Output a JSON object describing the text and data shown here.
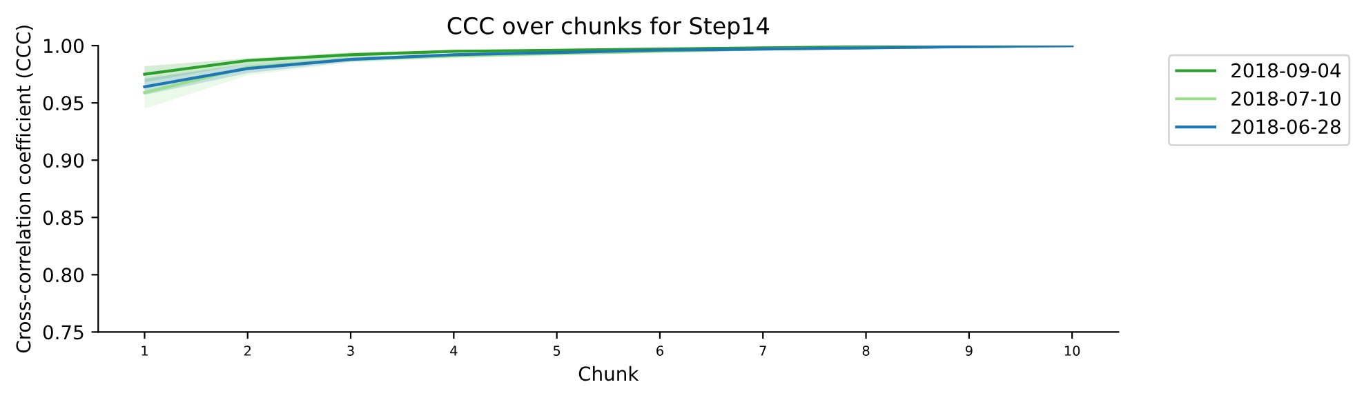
{
  "chart_data": {
    "type": "line",
    "title": "CCC over chunks for Step14",
    "xlabel": "Chunk",
    "ylabel": "Cross-correlation coefficient (CCC)",
    "x": [
      1,
      2,
      3,
      4,
      5,
      6,
      7,
      8,
      9,
      10
    ],
    "xlim": [
      0.55,
      10.45
    ],
    "xticks": [
      1,
      2,
      3,
      4,
      5,
      6,
      7,
      8,
      9,
      10
    ],
    "ylim": [
      0.75,
      1.0
    ],
    "yticks": [
      {
        "value": 0.75,
        "label": "0.75"
      },
      {
        "value": 0.8,
        "label": "0.80"
      },
      {
        "value": 0.85,
        "label": "0.85"
      },
      {
        "value": 0.9,
        "label": "0.90"
      },
      {
        "value": 0.95,
        "label": "0.95"
      },
      {
        "value": 1.0,
        "label": "1.00"
      }
    ],
    "legend": "top right",
    "grid": false,
    "series": [
      {
        "name": "2018-09-04",
        "color": "#2ca02c",
        "values": [
          0.975,
          0.987,
          0.992,
          0.995,
          0.996,
          0.997,
          0.998,
          0.999,
          0.999,
          1.0
        ],
        "lower": [
          0.968,
          0.984,
          0.99,
          0.994,
          0.995,
          0.996,
          0.997,
          0.998,
          0.999,
          1.0
        ],
        "upper": [
          0.982,
          0.989,
          0.994,
          0.996,
          0.997,
          0.998,
          0.999,
          0.999,
          1.0,
          1.0
        ]
      },
      {
        "name": "2018-07-10",
        "color": "#98df8a",
        "values": [
          0.959,
          0.981,
          0.988,
          0.991,
          0.993,
          0.995,
          0.997,
          0.998,
          0.999,
          1.0
        ],
        "lower": [
          0.945,
          0.974,
          0.985,
          0.989,
          0.991,
          0.994,
          0.996,
          0.997,
          0.998,
          1.0
        ],
        "upper": [
          0.972,
          0.986,
          0.991,
          0.993,
          0.995,
          0.996,
          0.998,
          0.999,
          0.999,
          1.0
        ]
      },
      {
        "name": "2018-06-28",
        "color": "#1f77b4",
        "values": [
          0.964,
          0.98,
          0.988,
          0.992,
          0.994,
          0.996,
          0.997,
          0.998,
          0.999,
          1.0
        ],
        "lower": [
          0.957,
          0.976,
          0.986,
          0.99,
          0.993,
          0.995,
          0.996,
          0.997,
          0.998,
          1.0
        ],
        "upper": [
          0.971,
          0.984,
          0.99,
          0.993,
          0.995,
          0.997,
          0.998,
          0.999,
          0.999,
          1.0
        ]
      }
    ]
  }
}
